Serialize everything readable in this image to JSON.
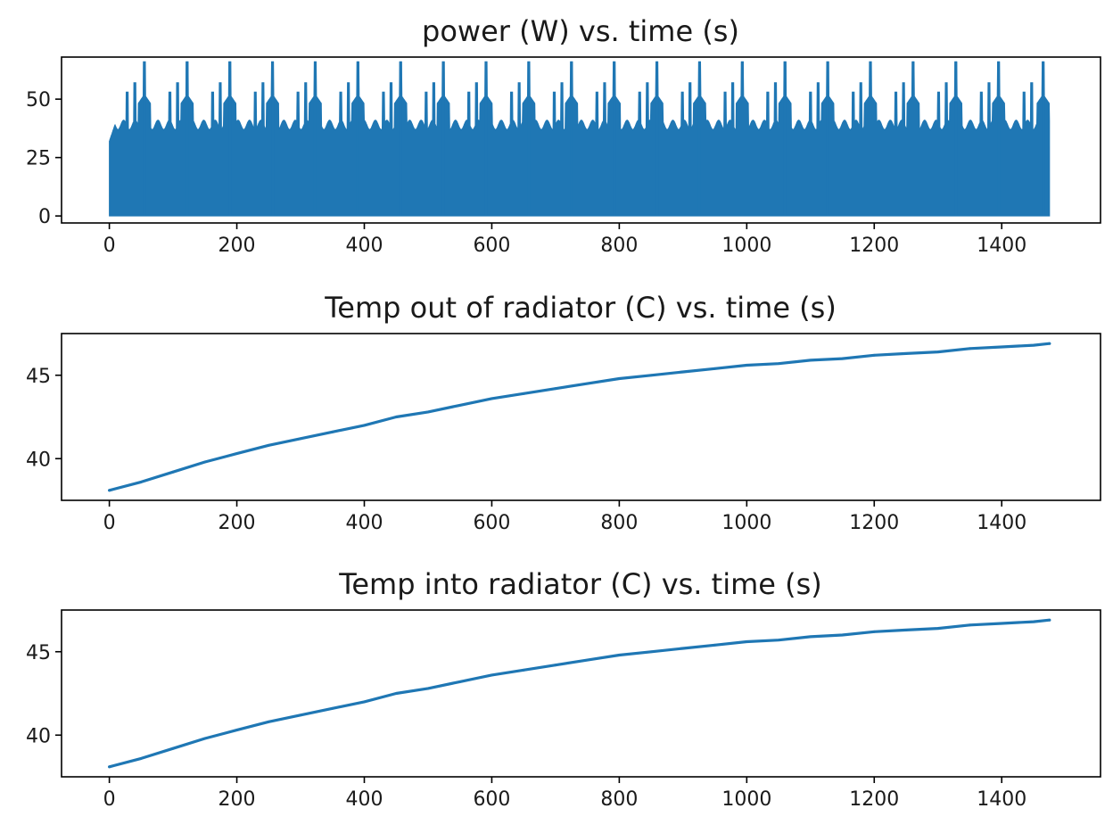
{
  "chart_data": [
    {
      "type": "area",
      "title": "power (W) vs. time (s)",
      "xlabel": "",
      "ylabel": "",
      "xlim": [
        -75,
        1555
      ],
      "ylim": [
        -3,
        68
      ],
      "xticks": [
        0,
        200,
        400,
        600,
        800,
        1000,
        1200,
        1400
      ],
      "xtick_labels": [
        "0",
        "200",
        "400",
        "600",
        "800",
        "1000",
        "1200",
        "1400"
      ],
      "yticks": [
        0,
        25,
        50
      ],
      "ytick_labels": [
        "0",
        "25",
        "50"
      ],
      "grid": false,
      "color": "#1f77b4",
      "series": [
        {
          "description_of_signal": "rapidly oscillating between 0 and an envelope; envelope peaks repeat about every 67 s",
          "x_start": 0,
          "x_end": 1475,
          "min": 0,
          "envelope_peak_times": [
            55,
            122,
            189,
            256,
            323,
            390,
            457,
            524,
            591,
            658,
            725,
            792,
            859,
            926,
            993,
            1060,
            1127,
            1194,
            1261,
            1328,
            1395,
            1465
          ],
          "envelope_peak_value": 66,
          "envelope_trough_value": 37
        }
      ]
    },
    {
      "type": "line",
      "title": "Temp out of radiator (C) vs. time (s)",
      "xlabel": "",
      "ylabel": "",
      "xlim": [
        -75,
        1555
      ],
      "ylim": [
        37.5,
        47.5
      ],
      "xticks": [
        0,
        200,
        400,
        600,
        800,
        1000,
        1200,
        1400
      ],
      "xtick_labels": [
        "0",
        "200",
        "400",
        "600",
        "800",
        "1000",
        "1200",
        "1400"
      ],
      "yticks": [
        40,
        45
      ],
      "ytick_labels": [
        "40",
        "45"
      ],
      "grid": false,
      "color": "#1f77b4",
      "series": [
        {
          "x": [
            0,
            50,
            100,
            150,
            200,
            250,
            300,
            350,
            400,
            450,
            500,
            550,
            600,
            650,
            700,
            750,
            800,
            850,
            900,
            950,
            1000,
            1050,
            1100,
            1150,
            1200,
            1250,
            1300,
            1350,
            1400,
            1450,
            1475
          ],
          "y": [
            38.1,
            38.6,
            39.2,
            39.8,
            40.3,
            40.8,
            41.2,
            41.6,
            42.0,
            42.5,
            42.8,
            43.2,
            43.6,
            43.9,
            44.2,
            44.5,
            44.8,
            45.0,
            45.2,
            45.4,
            45.6,
            45.7,
            45.9,
            46.0,
            46.2,
            46.3,
            46.4,
            46.6,
            46.7,
            46.8,
            46.9
          ]
        }
      ]
    },
    {
      "type": "line",
      "title": "Temp into radiator (C) vs. time (s)",
      "xlabel": "",
      "ylabel": "",
      "xlim": [
        -75,
        1555
      ],
      "ylim": [
        37.5,
        47.5
      ],
      "xticks": [
        0,
        200,
        400,
        600,
        800,
        1000,
        1200,
        1400
      ],
      "xtick_labels": [
        "0",
        "200",
        "400",
        "600",
        "800",
        "1000",
        "1200",
        "1400"
      ],
      "yticks": [
        40,
        45
      ],
      "ytick_labels": [
        "40",
        "45"
      ],
      "grid": false,
      "color": "#1f77b4",
      "series": [
        {
          "x": [
            0,
            50,
            100,
            150,
            200,
            250,
            300,
            350,
            400,
            450,
            500,
            550,
            600,
            650,
            700,
            750,
            800,
            850,
            900,
            950,
            1000,
            1050,
            1100,
            1150,
            1200,
            1250,
            1300,
            1350,
            1400,
            1450,
            1475
          ],
          "y": [
            38.1,
            38.6,
            39.2,
            39.8,
            40.3,
            40.8,
            41.2,
            41.6,
            42.0,
            42.5,
            42.8,
            43.2,
            43.6,
            43.9,
            44.2,
            44.5,
            44.8,
            45.0,
            45.2,
            45.4,
            45.6,
            45.7,
            45.9,
            46.0,
            46.2,
            46.3,
            46.4,
            46.6,
            46.7,
            46.8,
            46.9
          ]
        }
      ]
    }
  ]
}
